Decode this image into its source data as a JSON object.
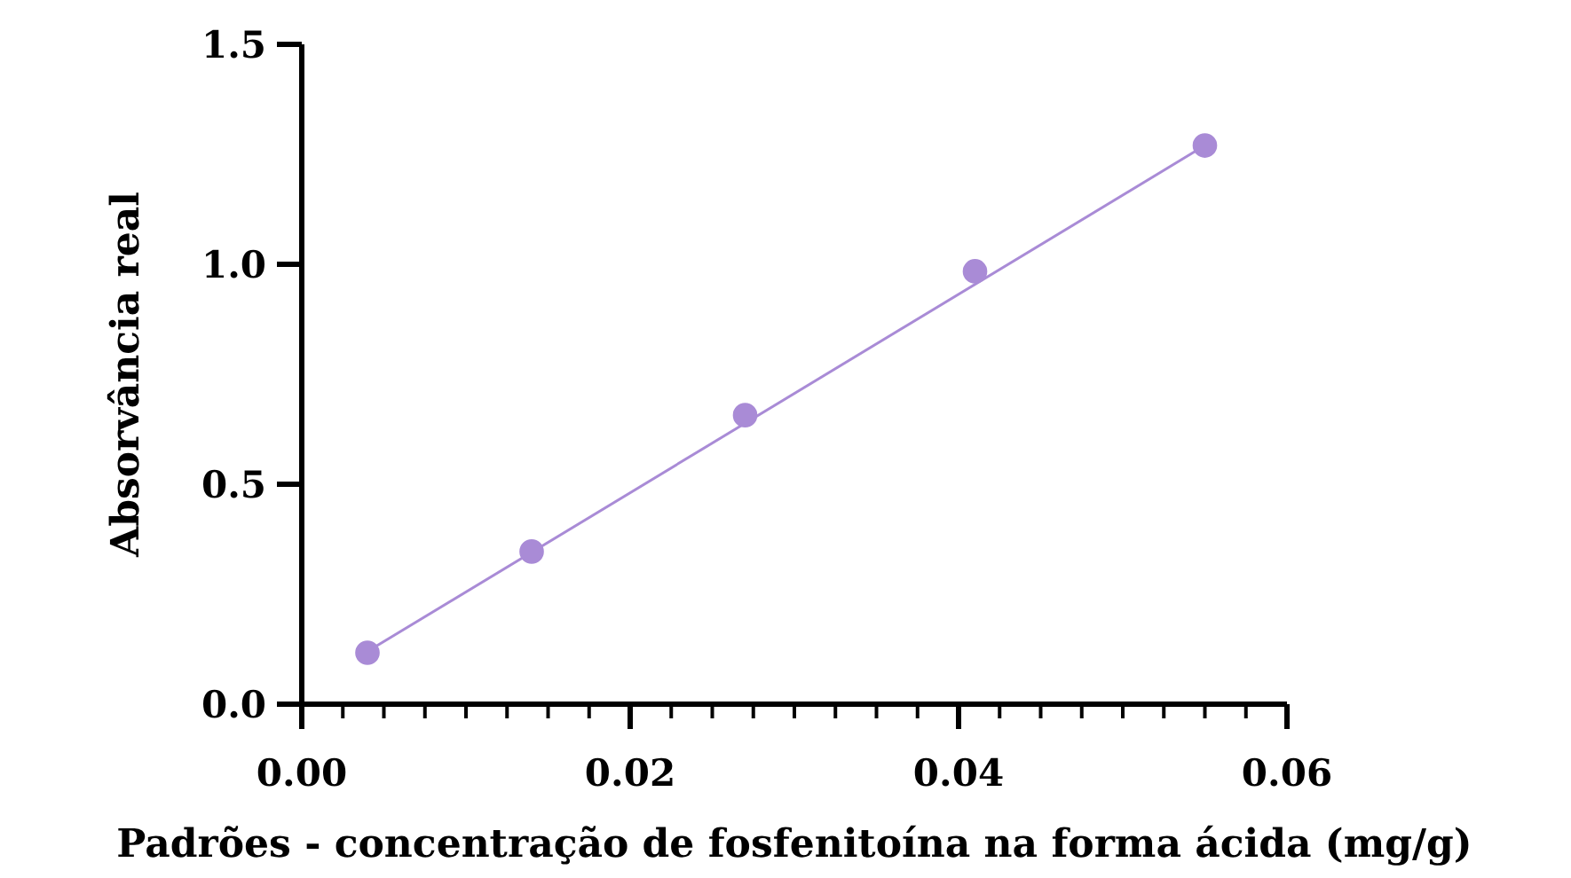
{
  "chart_data": {
    "type": "scatter",
    "xlabel": "Padrões - concentração de fosfenitoína na forma ácida (mg/g)",
    "ylabel": "Absorvância real",
    "xlim": [
      0,
      0.06
    ],
    "ylim": [
      0,
      1.5
    ],
    "xticks": [
      {
        "value": 0,
        "label": "0.00"
      },
      {
        "value": 0.0025,
        "label": null
      },
      {
        "value": 0.005,
        "label": null
      },
      {
        "value": 0.0075,
        "label": null
      },
      {
        "value": 0.01,
        "label": null
      },
      {
        "value": 0.0125,
        "label": null
      },
      {
        "value": 0.015,
        "label": null
      },
      {
        "value": 0.0175,
        "label": null
      },
      {
        "value": 0.02,
        "label": "0.02"
      },
      {
        "value": 0.0225,
        "label": null
      },
      {
        "value": 0.025,
        "label": null
      },
      {
        "value": 0.0275,
        "label": null
      },
      {
        "value": 0.03,
        "label": null
      },
      {
        "value": 0.0325,
        "label": null
      },
      {
        "value": 0.035,
        "label": null
      },
      {
        "value": 0.0375,
        "label": null
      },
      {
        "value": 0.04,
        "label": "0.04"
      },
      {
        "value": 0.0425,
        "label": null
      },
      {
        "value": 0.045,
        "label": null
      },
      {
        "value": 0.0475,
        "label": null
      },
      {
        "value": 0.05,
        "label": null
      },
      {
        "value": 0.0525,
        "label": null
      },
      {
        "value": 0.055,
        "label": null
      },
      {
        "value": 0.0575,
        "label": null
      },
      {
        "value": 0.06,
        "label": "0.06"
      }
    ],
    "yticks": [
      {
        "value": 0,
        "label": "0.0"
      },
      {
        "value": 0.5,
        "label": "0.5"
      },
      {
        "value": 1,
        "label": "1.0"
      },
      {
        "value": 1.5,
        "label": "1.5"
      }
    ],
    "grid": false,
    "marker": "circle",
    "series": [
      {
        "type": "line",
        "marker": "none",
        "color": "#a98bd6",
        "x": [
          0.004,
          0.055
        ],
        "values": [
          0.12,
          1.27
        ]
      },
      {
        "color": "#a98bd6",
        "x": [
          0.004,
          0.014,
          0.027,
          0.041,
          0.055
        ],
        "values": [
          0.117,
          0.347,
          0.657,
          0.984,
          1.27
        ]
      }
    ]
  }
}
